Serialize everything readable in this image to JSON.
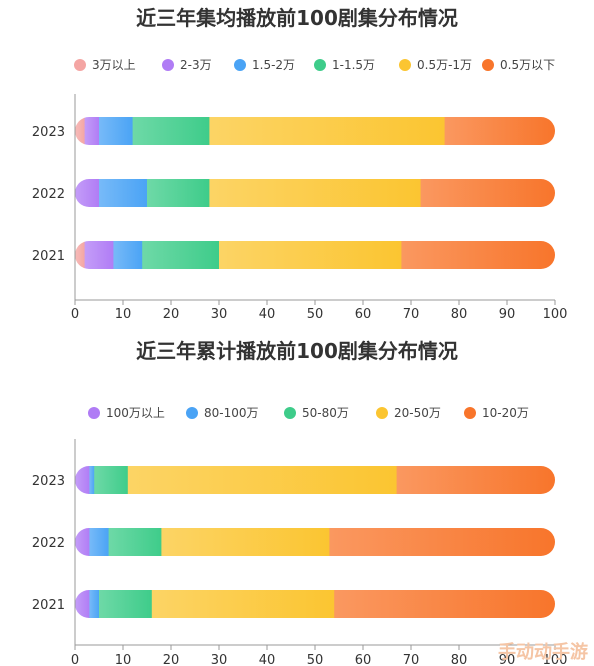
{
  "chart_data": [
    {
      "type": "bar",
      "orientation": "horizontal",
      "stacked": true,
      "title": "近三年集均播放前100剧集分布情况",
      "categories": [
        "2023",
        "2022",
        "2021"
      ],
      "xlim": [
        0,
        100
      ],
      "xticks": [
        "0",
        "10",
        "20",
        "30",
        "40",
        "50",
        "60",
        "70",
        "80",
        "90",
        "100"
      ],
      "legend_position": "top",
      "series": [
        {
          "name": "3万以上",
          "color": "#f4a5a3",
          "values": [
            2,
            0,
            2
          ]
        },
        {
          "name": "2-3万",
          "color": "#b07cf5",
          "values": [
            3,
            5,
            6
          ]
        },
        {
          "name": "1.5-2万",
          "color": "#4aa3f5",
          "values": [
            7,
            10,
            6
          ]
        },
        {
          "name": "1-1.5万",
          "color": "#3ecc8a",
          "values": [
            16,
            13,
            16
          ]
        },
        {
          "name": "0.5万-1万",
          "color": "#fbc531",
          "values": [
            49,
            44,
            38
          ]
        },
        {
          "name": "0.5万以下",
          "color": "#f8752b",
          "values": [
            23,
            28,
            32
          ]
        }
      ]
    },
    {
      "type": "bar",
      "orientation": "horizontal",
      "stacked": true,
      "title": "近三年累计播放前100剧集分布情况",
      "categories": [
        "2023",
        "2022",
        "2021"
      ],
      "xlim": [
        0,
        100
      ],
      "xticks": [
        "0",
        "10",
        "20",
        "30",
        "40",
        "50",
        "60",
        "70",
        "80",
        "90",
        "100"
      ],
      "legend_position": "top",
      "series": [
        {
          "name": "100万以上",
          "color": "#b07cf5",
          "values": [
            3,
            3,
            3
          ]
        },
        {
          "name": "80-100万",
          "color": "#4aa3f5",
          "values": [
            1,
            4,
            2
          ]
        },
        {
          "name": "50-80万",
          "color": "#3ecc8a",
          "values": [
            7,
            11,
            11
          ]
        },
        {
          "name": "20-50万",
          "color": "#fbc531",
          "values": [
            56,
            35,
            38
          ]
        },
        {
          "name": "10-20万",
          "color": "#f8752b",
          "values": [
            33,
            47,
            46
          ]
        }
      ]
    }
  ],
  "watermark": "手动动手游"
}
